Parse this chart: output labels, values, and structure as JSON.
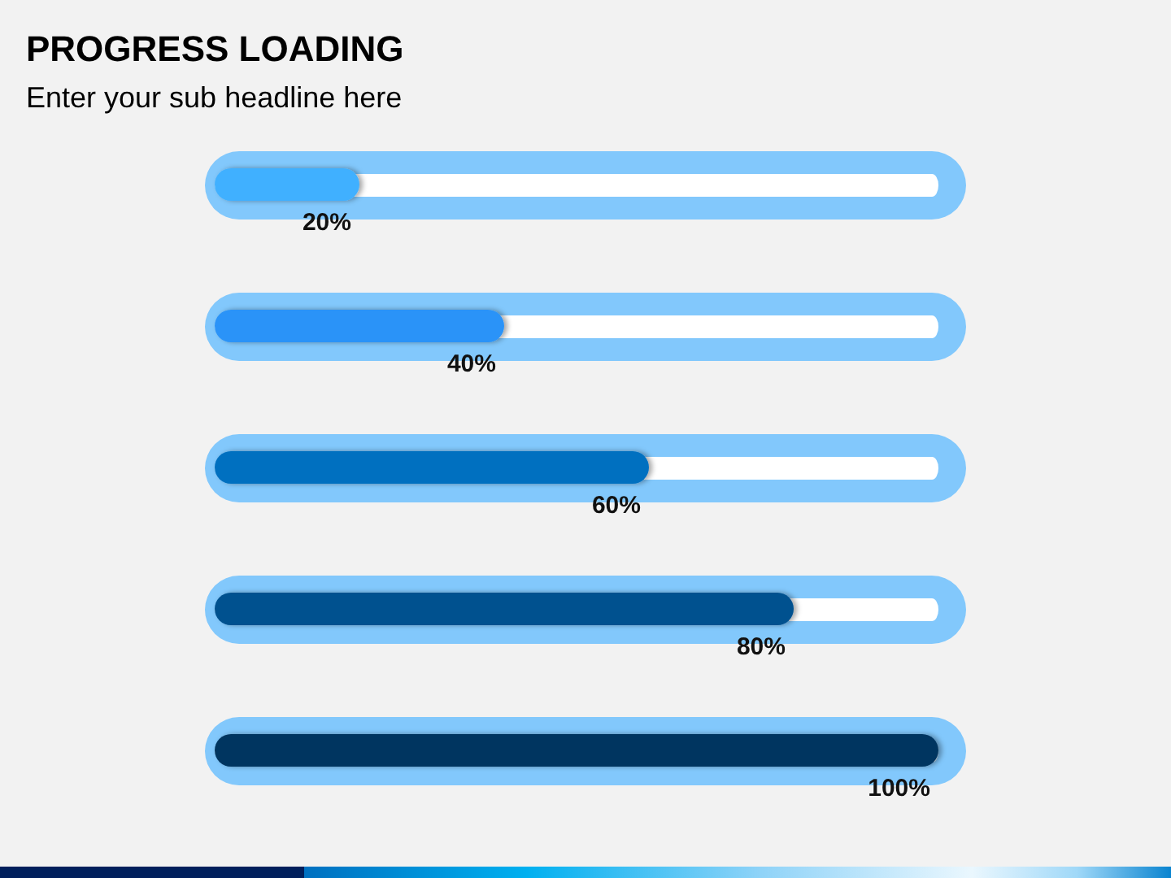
{
  "chart_data": {
    "type": "bar",
    "title": "PROGRESS LOADING",
    "subtitle": "Enter your sub headline here",
    "orientation": "horizontal",
    "categories": [
      null,
      null,
      null,
      null,
      null
    ],
    "values": [
      20,
      40,
      60,
      80,
      100
    ],
    "colors": [
      "#41b0ff",
      "#2b93f8",
      "#0070c0",
      "#00518f",
      "#003660"
    ],
    "value_labels": [
      "20%",
      "40%",
      "60%",
      "80%",
      "100%"
    ],
    "tick_labels": false
  }
}
